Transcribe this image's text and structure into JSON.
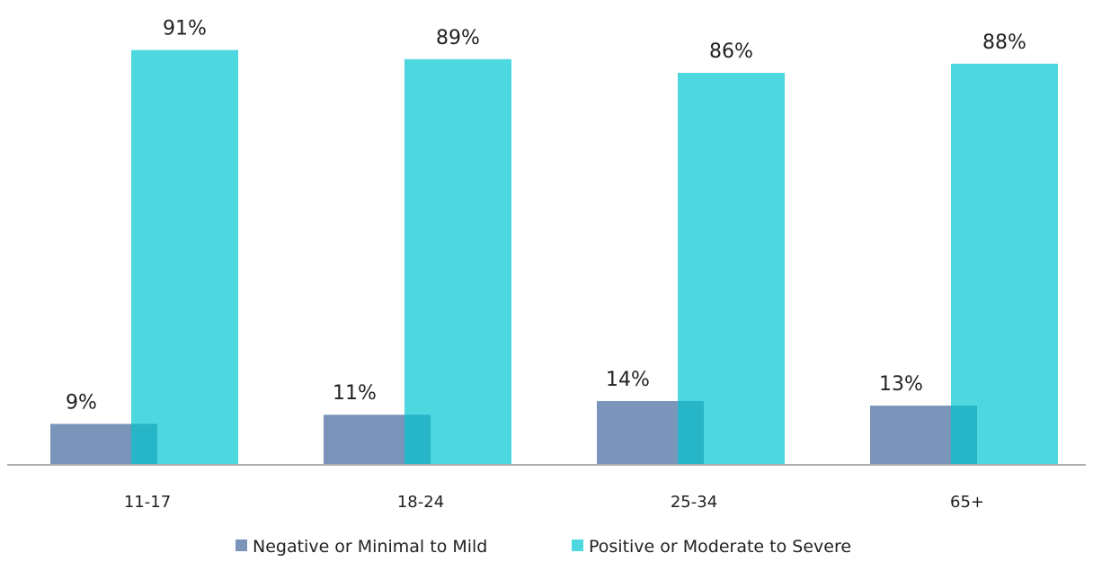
{
  "chart_data": {
    "type": "bar",
    "categories": [
      "11-17",
      "18-24",
      "25-34",
      "65+"
    ],
    "series": [
      {
        "name": "Negative or Minimal to Mild",
        "color": "#7b95ba",
        "values": [
          9,
          11,
          14,
          13
        ],
        "labels": [
          "9%",
          "11%",
          "14%",
          "13%"
        ]
      },
      {
        "name": "Positive or Moderate to Severe",
        "color": "#4dd7df",
        "values": [
          91,
          89,
          86,
          88
        ],
        "labels": [
          "91%",
          "89%",
          "86%",
          "88%"
        ]
      }
    ],
    "overlap_color": "#27b5c8",
    "title": "",
    "xlabel": "",
    "ylabel": "",
    "ylim": [
      0,
      100
    ],
    "grid": false,
    "legend": "bottom",
    "axis_color": "#b0b0b0"
  }
}
